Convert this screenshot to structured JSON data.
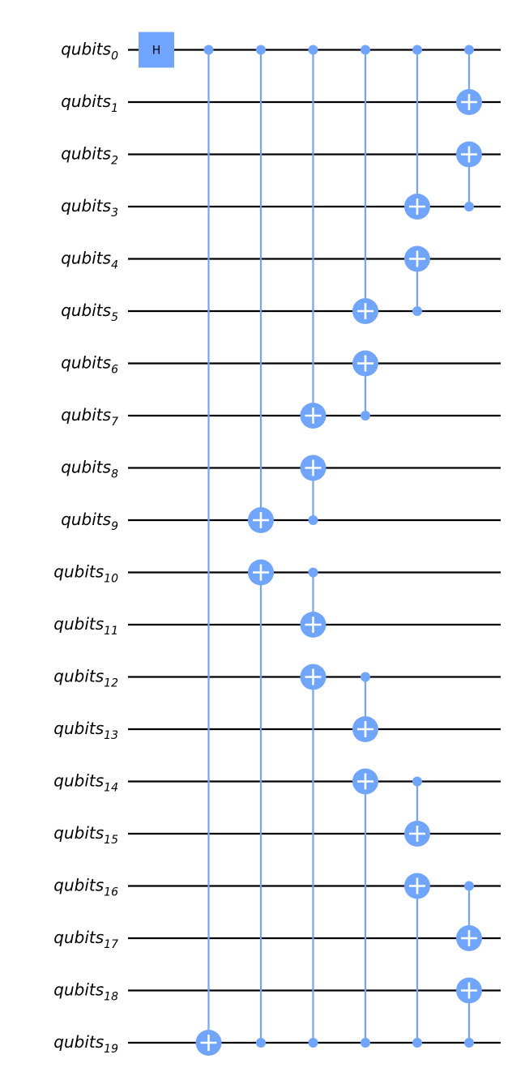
{
  "circuit": {
    "register_name": "qubits",
    "num_qubits": 20,
    "colors": {
      "wire": "#000000",
      "gate": "#6fa4ff",
      "gate_text": "#000000",
      "target_plus": "#ffffff"
    },
    "hadamard": {
      "qubit": 0,
      "label": "H"
    },
    "cnots": [
      {
        "column": 1,
        "control": 0,
        "target": 19
      },
      {
        "column": 2,
        "control": 0,
        "target": 9
      },
      {
        "column": 2,
        "control": 19,
        "target": 10
      },
      {
        "column": 3,
        "control": 0,
        "target": 7
      },
      {
        "column": 3,
        "control": 9,
        "target": 8
      },
      {
        "column": 3,
        "control": 10,
        "target": 11
      },
      {
        "column": 3,
        "control": 19,
        "target": 12
      },
      {
        "column": 4,
        "control": 0,
        "target": 5
      },
      {
        "column": 4,
        "control": 7,
        "target": 6
      },
      {
        "column": 4,
        "control": 12,
        "target": 13
      },
      {
        "column": 4,
        "control": 19,
        "target": 14
      },
      {
        "column": 5,
        "control": 0,
        "target": 3
      },
      {
        "column": 5,
        "control": 5,
        "target": 4
      },
      {
        "column": 5,
        "control": 14,
        "target": 15
      },
      {
        "column": 5,
        "control": 19,
        "target": 16
      },
      {
        "column": 6,
        "control": 0,
        "target": 1
      },
      {
        "column": 6,
        "control": 3,
        "target": 2
      },
      {
        "column": 6,
        "control": 16,
        "target": 17
      },
      {
        "column": 6,
        "control": 19,
        "target": 18
      }
    ]
  }
}
